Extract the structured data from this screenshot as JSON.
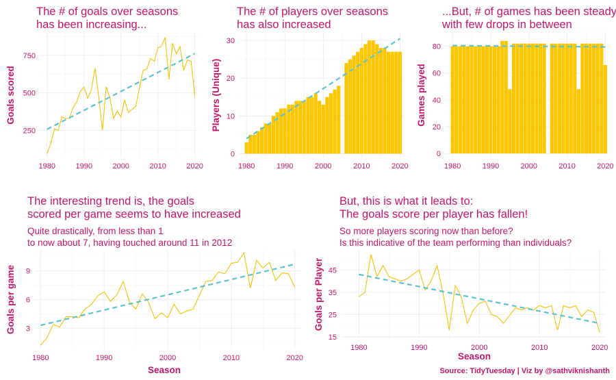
{
  "colors": {
    "text": "#c5146b",
    "bar": "#ffc600",
    "line": "#f3c300",
    "trend": "#5bc3d0"
  },
  "caption": "Source: TidyTuesday | Viz by @sathviknishanth",
  "chart_data": [
    {
      "id": "goals",
      "type": "line",
      "title": [
        "The # of goals over seasons",
        "has been increasing..."
      ],
      "ylabel": "Goals scored",
      "xlim": [
        1978,
        2021
      ],
      "ylim": [
        70,
        900
      ],
      "xticks": [
        1980,
        1990,
        2000,
        2010,
        2020
      ],
      "yticks": [
        250,
        500,
        750
      ],
      "x": [
        1980,
        1981,
        1982,
        1983,
        1984,
        1985,
        1986,
        1987,
        1988,
        1989,
        1990,
        1991,
        1992,
        1993,
        1994,
        1995,
        1996,
        1997,
        1998,
        1999,
        2000,
        2001,
        2002,
        2003,
        2004,
        2006,
        2007,
        2008,
        2009,
        2010,
        2011,
        2012,
        2013,
        2014,
        2015,
        2016,
        2017,
        2018,
        2019,
        2020
      ],
      "values": [
        95,
        165,
        260,
        250,
        340,
        330,
        330,
        400,
        440,
        510,
        540,
        465,
        520,
        665,
        470,
        250,
        540,
        470,
        330,
        380,
        340,
        455,
        370,
        390,
        410,
        650,
        660,
        730,
        710,
        800,
        810,
        870,
        590,
        830,
        760,
        810,
        650,
        720,
        710,
        480
      ],
      "trend": [
        [
          1980,
          258
        ],
        [
          2020,
          762
        ]
      ]
    },
    {
      "id": "players",
      "type": "bar",
      "title": [
        "The # of players over seasons",
        "has also increased"
      ],
      "ylabel": "Players (Unique)",
      "xlim": [
        1978,
        2021
      ],
      "ylim": [
        -1,
        32
      ],
      "xticks": [
        1980,
        1990,
        2000,
        2010,
        2020
      ],
      "yticks": [
        0,
        10,
        20,
        30
      ],
      "x": [
        1980,
        1981,
        1982,
        1983,
        1984,
        1985,
        1986,
        1987,
        1988,
        1989,
        1990,
        1991,
        1992,
        1993,
        1994,
        1995,
        1996,
        1997,
        1998,
        1999,
        2000,
        2001,
        2002,
        2003,
        2004,
        2006,
        2007,
        2008,
        2009,
        2010,
        2011,
        2012,
        2013,
        2014,
        2015,
        2016,
        2017,
        2018,
        2019,
        2020
      ],
      "values": [
        3,
        5,
        5,
        6,
        7,
        8,
        8,
        10,
        11,
        12,
        12,
        13,
        13,
        14,
        14,
        14,
        15,
        15,
        16,
        14,
        13,
        15,
        16,
        17,
        18,
        24,
        25,
        26,
        27,
        28,
        29,
        30,
        30,
        29,
        28,
        28,
        27,
        27,
        27,
        27
      ],
      "trend": [
        [
          1980,
          4
        ],
        [
          2020,
          30.5
        ]
      ]
    },
    {
      "id": "games",
      "type": "bar",
      "title": [
        "...But, # of games has been steady",
        "with few drops in between"
      ],
      "ylabel": "Games played",
      "xlim": [
        1978,
        2021
      ],
      "ylim": [
        -3,
        90
      ],
      "xticks": [
        1980,
        1990,
        2000,
        2010,
        2020
      ],
      "yticks": [
        0,
        20,
        40,
        60,
        80
      ],
      "x": [
        1980,
        1981,
        1982,
        1983,
        1984,
        1985,
        1986,
        1987,
        1988,
        1989,
        1990,
        1991,
        1992,
        1993,
        1994,
        1995,
        1996,
        1997,
        1998,
        1999,
        2000,
        2001,
        2002,
        2003,
        2004,
        2006,
        2007,
        2008,
        2009,
        2010,
        2011,
        2012,
        2013,
        2014,
        2015,
        2016,
        2017,
        2018,
        2019,
        2020
      ],
      "values": [
        80,
        80,
        80,
        80,
        80,
        80,
        80,
        80,
        80,
        80,
        80,
        80,
        80,
        84,
        84,
        48,
        82,
        82,
        82,
        82,
        82,
        82,
        82,
        82,
        82,
        82,
        82,
        82,
        82,
        82,
        82,
        82,
        48,
        82,
        82,
        82,
        82,
        82,
        82,
        66
      ],
      "trend": [
        [
          1980,
          80.5
        ],
        [
          2020,
          79.5
        ]
      ]
    },
    {
      "id": "gpg",
      "type": "line",
      "title": [
        "The interesting trend is, the goals",
        "scored per game seems to have increased"
      ],
      "subtitle": [
        "Quite drastically, from less than 1",
        "to now about 7, having touched around 11 in 2012"
      ],
      "xlabel": "Season",
      "ylabel": "Goals per game",
      "xlim": [
        1979,
        2021
      ],
      "ylim": [
        0.8,
        11.2
      ],
      "xticks": [
        1980,
        1990,
        2000,
        2010,
        2020
      ],
      "yticks": [
        3,
        6,
        9
      ],
      "x": [
        1980,
        1981,
        1982,
        1983,
        1984,
        1985,
        1986,
        1987,
        1988,
        1989,
        1990,
        1991,
        1992,
        1993,
        1994,
        1995,
        1996,
        1997,
        1998,
        1999,
        2000,
        2001,
        2002,
        2003,
        2004,
        2006,
        2007,
        2008,
        2009,
        2010,
        2011,
        2012,
        2013,
        2014,
        2015,
        2016,
        2017,
        2018,
        2019,
        2020
      ],
      "values": [
        1.2,
        2.0,
        3.4,
        3.1,
        4.2,
        4.2,
        4.1,
        5.0,
        5.5,
        6.4,
        6.8,
        5.8,
        6.5,
        7.9,
        5.7,
        5.0,
        6.6,
        5.7,
        4.0,
        4.6,
        4.1,
        5.5,
        4.5,
        4.8,
        5.0,
        7.9,
        8.0,
        8.9,
        8.7,
        9.8,
        9.9,
        10.9,
        7.2,
        10.1,
        9.3,
        9.9,
        8.0,
        8.8,
        8.7,
        7.3
      ],
      "trend": [
        [
          1980,
          3.3
        ],
        [
          2020,
          9.7
        ]
      ]
    },
    {
      "id": "gpp",
      "type": "line",
      "title": [
        "But, this is what it leads to:",
        "The goals score per player has fallen!"
      ],
      "subtitle": [
        "So more players scoring now than before?",
        "Is this indicative of the team performing than individuals?"
      ],
      "xlabel": "Season",
      "ylabel": "Goals per Player",
      "xlim": [
        1977,
        2021
      ],
      "ylim": [
        14,
        54
      ],
      "xticks": [
        1980,
        1990,
        2000,
        2010,
        2020
      ],
      "yticks": [
        15,
        25,
        35,
        45
      ],
      "x": [
        1980,
        1981,
        1982,
        1983,
        1984,
        1985,
        1986,
        1987,
        1988,
        1989,
        1990,
        1991,
        1992,
        1993,
        1994,
        1995,
        1996,
        1997,
        1998,
        1999,
        2000,
        2001,
        2002,
        2003,
        2004,
        2006,
        2007,
        2008,
        2009,
        2010,
        2011,
        2012,
        2013,
        2014,
        2015,
        2016,
        2017,
        2018,
        2019,
        2020
      ],
      "values": [
        33,
        35,
        52,
        42,
        47,
        42,
        41,
        40,
        41,
        43,
        45,
        36,
        40,
        47,
        34,
        18,
        38,
        33,
        21,
        27,
        30,
        31,
        25,
        24,
        21,
        28,
        27,
        28,
        27,
        29,
        28,
        29,
        18,
        29,
        28,
        29,
        24,
        27,
        26,
        17
      ],
      "trend": [
        [
          1980,
          43
        ],
        [
          2020,
          21
        ]
      ]
    }
  ]
}
